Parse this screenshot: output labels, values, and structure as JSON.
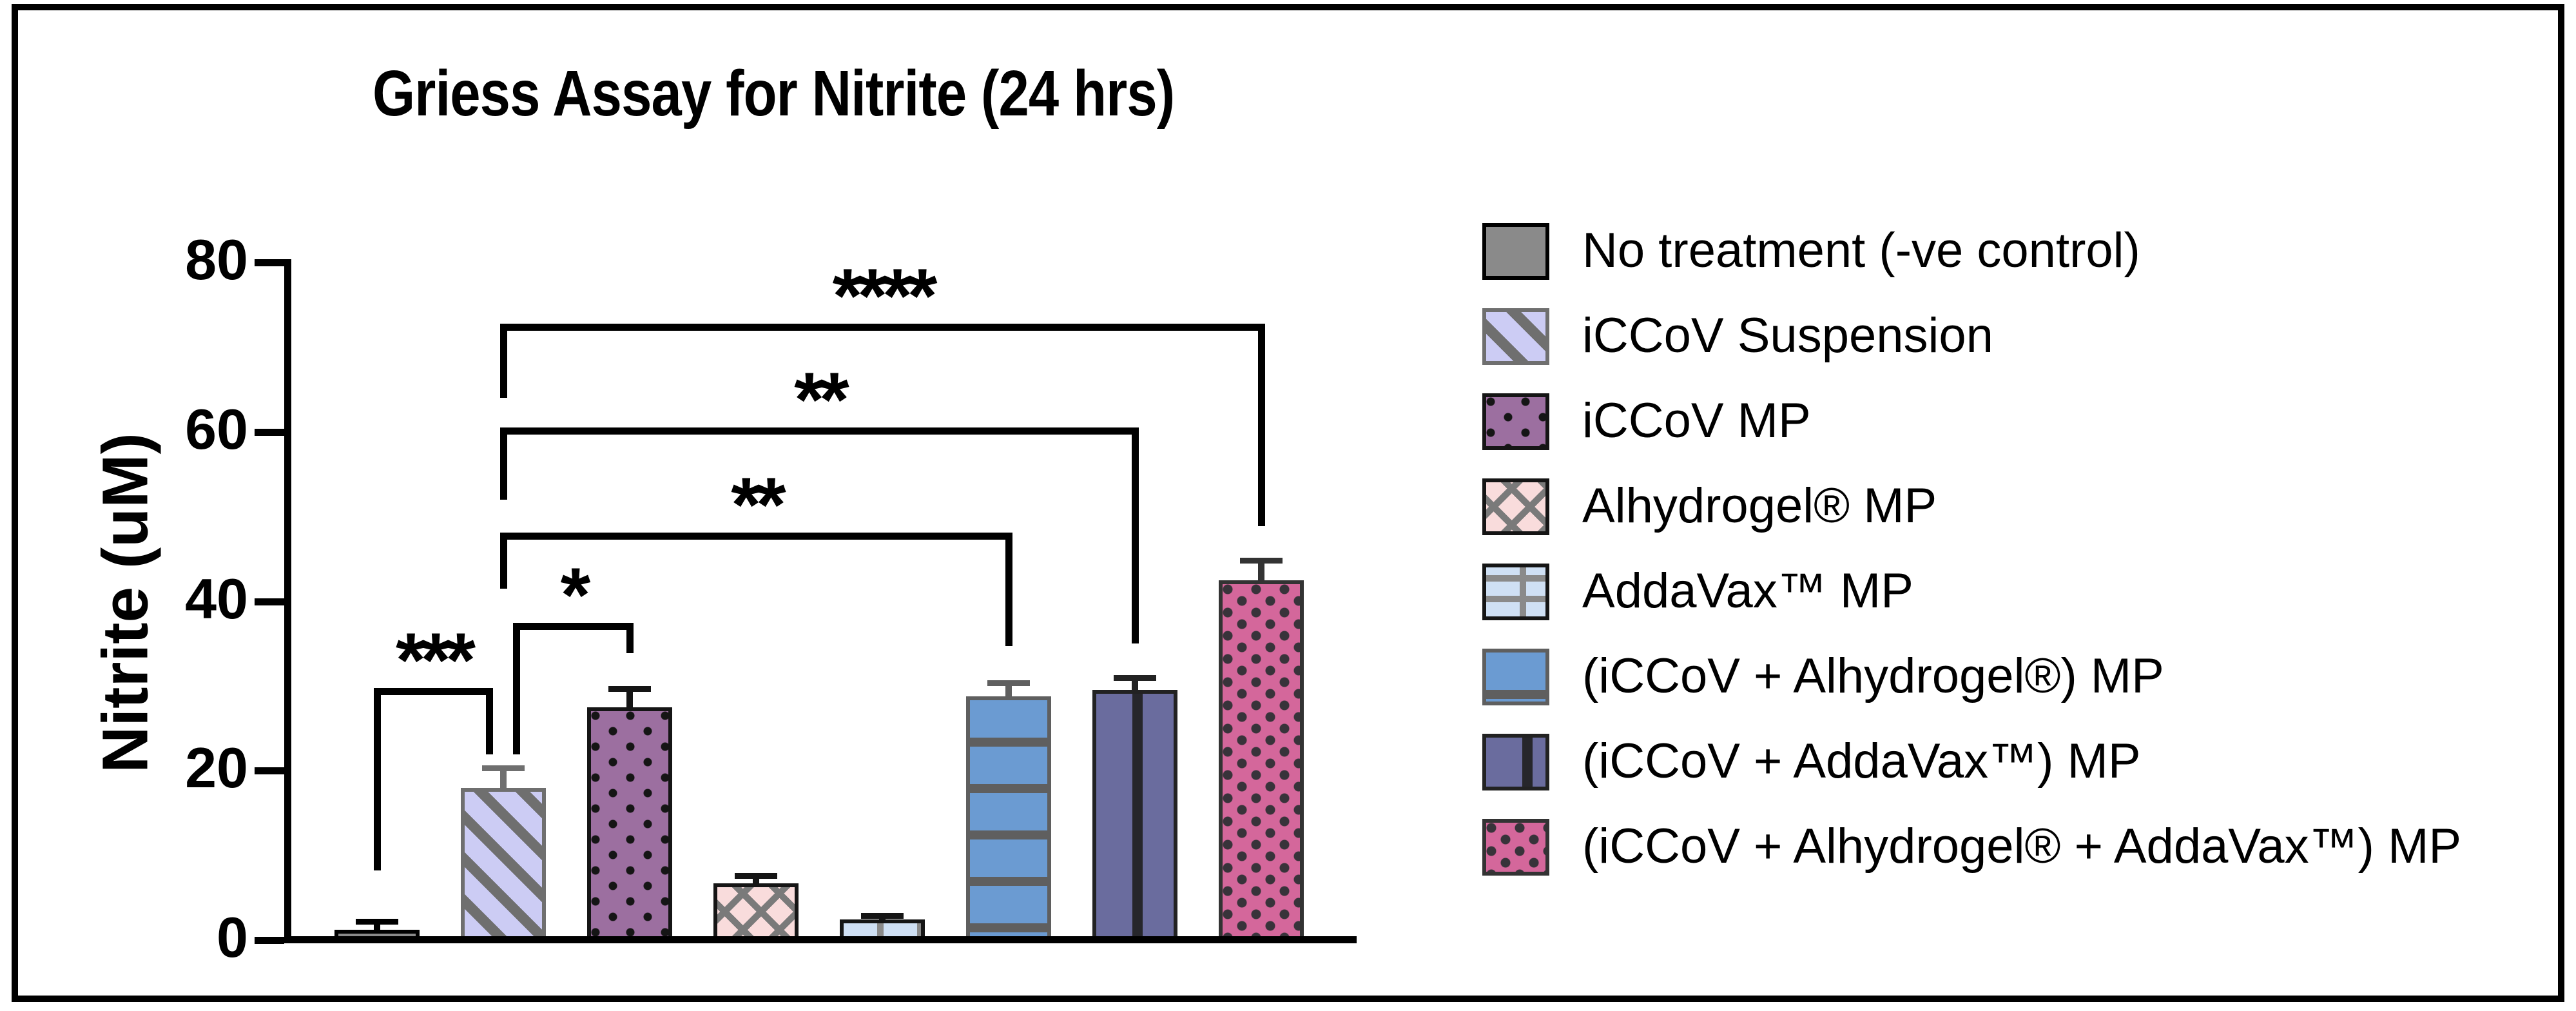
{
  "figure": {
    "title": "Griess Assay for Nitrite (24 hrs)"
  },
  "chart_data": {
    "type": "bar",
    "title": "Griess Assay for Nitrite (24 hrs)",
    "xlabel": "",
    "ylabel": "Nitrite (uM)",
    "ylim": [
      0,
      80
    ],
    "yticks": [
      "0",
      "20",
      "40",
      "60",
      "80"
    ],
    "grid": false,
    "legend_position": "right",
    "series": [
      {
        "label": "No treatment (-ve control)",
        "value": 1.2,
        "error": 1.0,
        "pattern": "solid-gray",
        "fill": "#8a8a8a",
        "edge": "#000000"
      },
      {
        "label": "iCCoV Suspension",
        "value": 18.0,
        "error": 2.3,
        "pattern": "diagonal-stripes",
        "fill": "#ccccf4",
        "edge": "#6f6f6f"
      },
      {
        "label": "iCCoV MP",
        "value": 27.5,
        "error": 2.2,
        "pattern": "dots",
        "fill": "#9c6fa0",
        "edge": "#151515"
      },
      {
        "label": "Alhydrogel® MP",
        "value": 6.7,
        "error": 0.9,
        "pattern": "crosshatch",
        "fill": "#f9dcdc",
        "edge": "#151515"
      },
      {
        "label": "AddaVax™ MP",
        "value": 2.4,
        "error": 0.5,
        "pattern": "bricks",
        "fill": "#cfe0f4",
        "edge": "#151515"
      },
      {
        "label": "(iCCoV + Alhydrogel®) MP",
        "value": 28.8,
        "error": 1.6,
        "pattern": "h-stripes",
        "fill": "#6b9bd2",
        "edge": "#5f5f5f"
      },
      {
        "label": "(iCCoV + AddaVax™) MP",
        "value": 29.5,
        "error": 1.5,
        "pattern": "v-stripes",
        "fill": "#6a6c9e",
        "edge": "#222222"
      },
      {
        "label": "(iCCoV + Alhydrogel® + AddaVax™) MP",
        "value": 42.5,
        "error": 2.3,
        "pattern": "chevrons",
        "fill": "#d4679b",
        "edge": "#333333"
      }
    ],
    "significance": [
      {
        "stars": "***",
        "from": 0,
        "to": 1,
        "x1_off": 0,
        "x2_off": -22,
        "y": 29.4,
        "y1": 8.2,
        "y2": 21.9
      },
      {
        "stars": "*",
        "from": 1,
        "to": 2,
        "x1_off": 20,
        "x2_off": 0,
        "y": 37.1,
        "y1": 21.9,
        "y2": 33.9
      },
      {
        "stars": "**",
        "from": 1,
        "to": 5,
        "x1_off": 0,
        "x2_off": 0,
        "y": 47.7,
        "y1": 41.5,
        "y2": 34.7
      },
      {
        "stars": "**",
        "from": 1,
        "to": 6,
        "x1_off": 0,
        "x2_off": 0,
        "y": 60.1,
        "y1": 52.0,
        "y2": 35.0
      },
      {
        "stars": "****",
        "from": 1,
        "to": 7,
        "x1_off": 0,
        "x2_off": 0,
        "y": 72.4,
        "y1": 64.0,
        "y2": 48.9
      }
    ]
  }
}
